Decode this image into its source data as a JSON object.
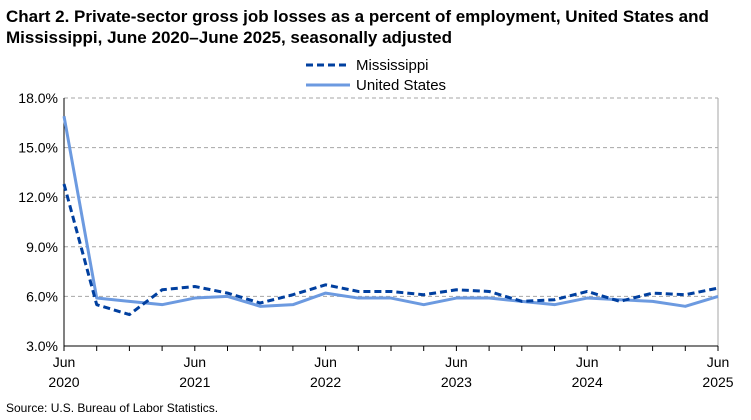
{
  "title": "Chart 2. Private-sector gross job losses as a percent of employment, United States and Mississippi, June 2020–June 2025, seasonally adjusted",
  "source": "Source: U.S. Bureau of Labor Statistics.",
  "chart_data": {
    "type": "line",
    "title": "Chart 2. Private-sector gross job losses as a percent of employment, United States and Mississippi, June 2020–June 2025, seasonally adjusted",
    "x": [
      "Jun 2020",
      "Sep 2020",
      "Dec 2020",
      "Mar 2021",
      "Jun 2021",
      "Sep 2021",
      "Dec 2021",
      "Mar 2022",
      "Jun 2022",
      "Sep 2022",
      "Dec 2022",
      "Mar 2023",
      "Jun 2023",
      "Sep 2023",
      "Dec 2023",
      "Mar 2024",
      "Jun 2024",
      "Sep 2024",
      "Dec 2024",
      "Mar 2025",
      "Jun 2025"
    ],
    "x_tick_labels": [
      [
        "Jun",
        "2020"
      ],
      [
        "Jun",
        "2021"
      ],
      [
        "Jun",
        "2022"
      ],
      [
        "Jun",
        "2023"
      ],
      [
        "Jun",
        "2024"
      ],
      [
        "Jun",
        "2025"
      ]
    ],
    "ylim": [
      3,
      18
    ],
    "y_ticks": [
      "3.0%",
      "6.0%",
      "9.0%",
      "12.0%",
      "15.0%",
      "18.0%"
    ],
    "grid": "horizontal dashed",
    "legend": "top-center",
    "series": [
      {
        "name": "Mississippi",
        "color": "#003f9f",
        "style": "dashed",
        "values": [
          12.8,
          5.5,
          4.9,
          6.4,
          6.6,
          6.2,
          5.6,
          6.1,
          6.7,
          6.3,
          6.3,
          6.1,
          6.4,
          6.3,
          5.7,
          5.8,
          6.3,
          5.7,
          6.2,
          6.1,
          6.5
        ]
      },
      {
        "name": "United States",
        "color": "#6c9ae0",
        "style": "solid",
        "values": [
          16.9,
          5.9,
          5.7,
          5.5,
          5.9,
          6.0,
          5.4,
          5.5,
          6.2,
          5.9,
          5.9,
          5.5,
          5.9,
          5.9,
          5.7,
          5.5,
          5.9,
          5.8,
          5.7,
          5.4,
          6.0
        ]
      }
    ]
  }
}
